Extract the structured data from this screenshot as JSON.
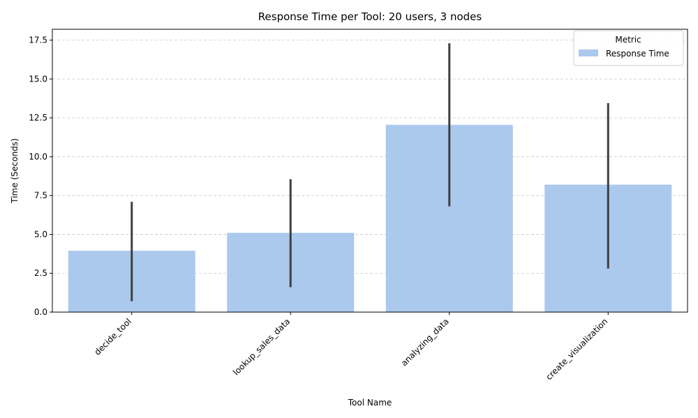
{
  "chart_data": {
    "type": "bar",
    "title": "Response Time per Tool: 20 users, 3 nodes",
    "xlabel": "Tool Name",
    "ylabel": "Time (Seconds)",
    "categories": [
      "decide_tool",
      "lookup_sales_data",
      "analyzing_data",
      "create_visualization"
    ],
    "series": [
      {
        "name": "Response Time",
        "values": [
          3.95,
          5.1,
          12.05,
          8.2
        ],
        "error_low": [
          0.7,
          1.6,
          6.8,
          2.8
        ],
        "error_high": [
          7.1,
          8.55,
          17.3,
          13.45
        ]
      }
    ],
    "ylim": [
      0,
      18.2
    ],
    "yticks": [
      0.0,
      2.5,
      5.0,
      7.5,
      10.0,
      12.5,
      15.0,
      17.5
    ],
    "ytick_labels": [
      "0.0",
      "2.5",
      "5.0",
      "7.5",
      "10.0",
      "12.5",
      "15.0",
      "17.5"
    ],
    "grid": "y-dashed",
    "legend": {
      "title": "Metric",
      "placement": "top-right",
      "entries": [
        "Response Time"
      ]
    },
    "colors": {
      "bar": "#abc9ed",
      "error": "#3f3f3f",
      "grid": "#c8c8c8"
    }
  }
}
